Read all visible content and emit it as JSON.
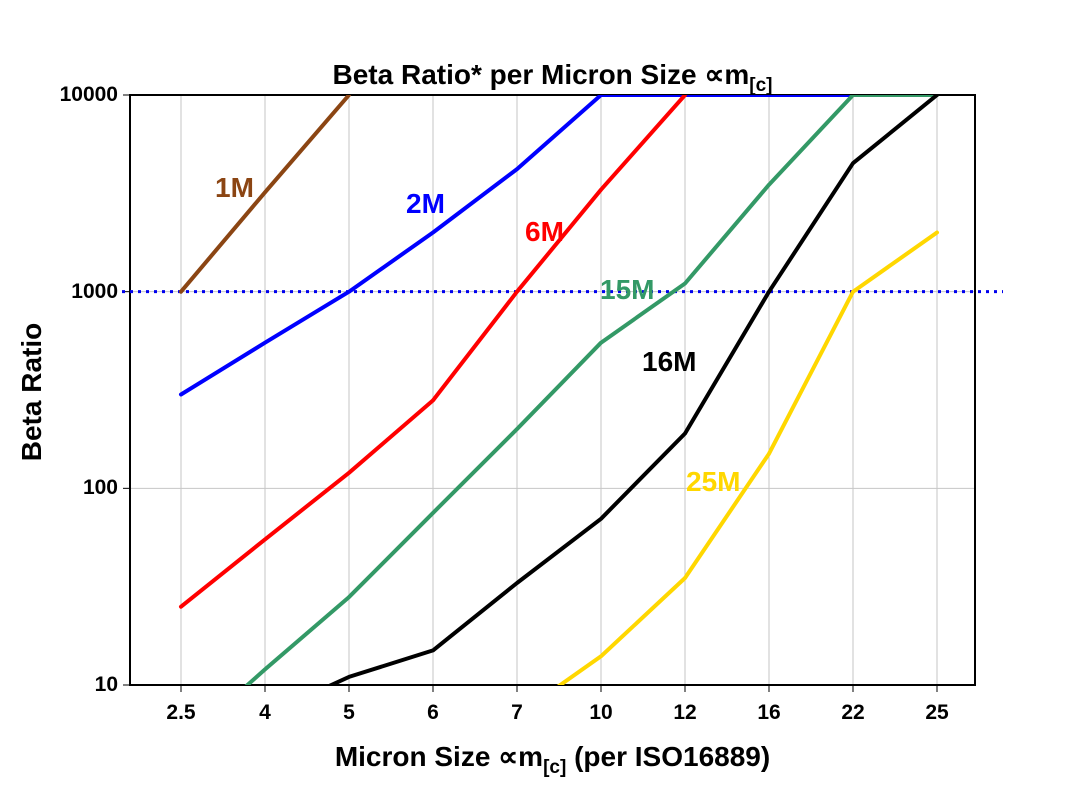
{
  "chart_data": {
    "type": "line",
    "title": "Beta Ratio* per Micron Size ∝m[c]",
    "title_parts": {
      "main": "Beta Ratio* per Micron Size ∝m",
      "sub": "[c]"
    },
    "xlabel": "Micron Size ∝m[c] (per ISO16889)",
    "xlabel_parts": {
      "pre": "Micron Size ∝m",
      "sub": "[c]",
      "post": " (per ISO16889)"
    },
    "ylabel": "Beta Ratio",
    "y_scale": "log",
    "ylim": [
      10,
      10000
    ],
    "y_tick_labels": [
      "10000",
      "1000",
      "100",
      "10"
    ],
    "x_categories": [
      "2.5",
      "4",
      "5",
      "6",
      "7",
      "10",
      "12",
      "16",
      "22",
      "25"
    ],
    "grid": {
      "vertical": true,
      "horizontal_decades": [
        100,
        1000
      ]
    },
    "reference_line": {
      "value": 1000,
      "color": "#0000ee",
      "style": "dotted"
    },
    "colors": {
      "grid": "#c6c6c6",
      "axis": "#000000"
    },
    "series": [
      {
        "name": "1M",
        "color": "#8b4513",
        "values": [
          1000,
          3200,
          10000,
          null,
          null,
          null,
          null,
          null,
          null,
          null
        ]
      },
      {
        "name": "2M",
        "color": "#0000ff",
        "values": [
          300,
          550,
          1000,
          2000,
          4200,
          10000,
          10000,
          10000,
          10000,
          null
        ]
      },
      {
        "name": "6M",
        "color": "#ff0000",
        "values": [
          25,
          55,
          120,
          280,
          1000,
          3300,
          10000,
          null,
          null,
          null
        ]
      },
      {
        "name": "15M",
        "color": "#339966",
        "values": [
          5,
          12,
          28,
          75,
          200,
          550,
          1100,
          3500,
          10000,
          10000
        ]
      },
      {
        "name": "16M",
        "color": "#000000",
        "values": [
          null,
          7,
          11,
          15,
          33,
          70,
          190,
          1000,
          4500,
          10000
        ]
      },
      {
        "name": "25M",
        "color": "#ffd700",
        "values": [
          null,
          null,
          null,
          null,
          7,
          14,
          35,
          150,
          1000,
          2000
        ]
      }
    ]
  }
}
